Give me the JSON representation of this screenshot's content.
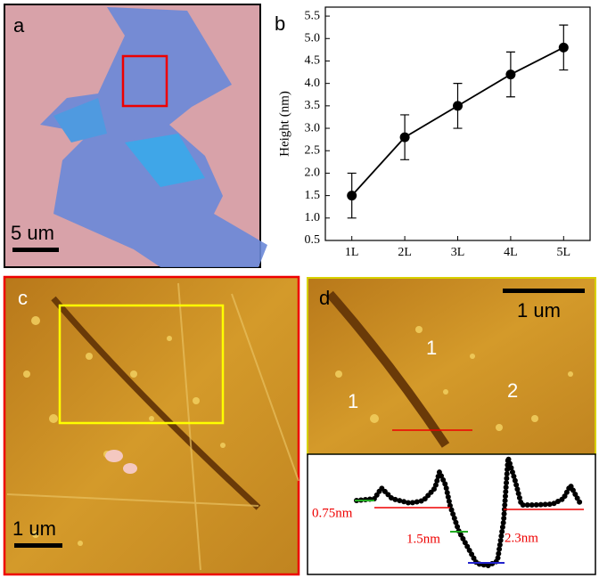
{
  "panels": {
    "a": {
      "letter": "a",
      "scale_bar": "5 um"
    },
    "b": {
      "letter": "b"
    },
    "c": {
      "letter": "c",
      "scale_bar": "1 um"
    },
    "d": {
      "letter": "d",
      "scale_bar": "1 um",
      "regions": [
        "1",
        "1",
        "2"
      ],
      "steps": [
        "0.75nm",
        "1.5nm",
        "2.3nm"
      ]
    }
  },
  "chart_data": {
    "type": "line",
    "y_label": "Height (nm)",
    "categories": [
      "1L",
      "2L",
      "3L",
      "4L",
      "5L"
    ],
    "values": [
      1.5,
      2.8,
      3.5,
      4.2,
      4.8
    ],
    "errors": [
      0.5,
      0.5,
      0.5,
      0.5,
      0.5
    ],
    "color": "#000000",
    "ylim": [
      0.5,
      5.7
    ],
    "yticks": [
      0.5,
      {
        "value": 1,
        "label": "1.0"
      },
      1.5,
      {
        "value": 2,
        "label": "2.0"
      },
      2.5,
      {
        "value": 3,
        "label": "3.0"
      },
      3.5,
      {
        "value": 4,
        "label": "4.0"
      },
      4.5,
      {
        "value": 5,
        "label": "5.0"
      },
      5.5
    ]
  }
}
